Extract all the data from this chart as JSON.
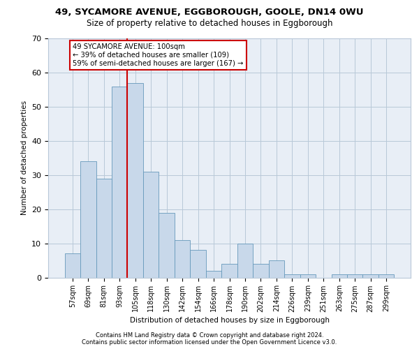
{
  "title_line1": "49, SYCAMORE AVENUE, EGGBOROUGH, GOOLE, DN14 0WU",
  "title_line2": "Size of property relative to detached houses in Eggborough",
  "xlabel": "Distribution of detached houses by size in Eggborough",
  "ylabel": "Number of detached properties",
  "bar_color": "#c8d8ea",
  "bar_edge_color": "#6699bb",
  "grid_color": "#b8c8d8",
  "background_color": "#e8eef6",
  "categories": [
    "57sqm",
    "69sqm",
    "81sqm",
    "93sqm",
    "105sqm",
    "118sqm",
    "130sqm",
    "142sqm",
    "154sqm",
    "166sqm",
    "178sqm",
    "190sqm",
    "202sqm",
    "214sqm",
    "226sqm",
    "239sqm",
    "251sqm",
    "263sqm",
    "275sqm",
    "287sqm",
    "299sqm"
  ],
  "values": [
    7,
    34,
    29,
    56,
    57,
    31,
    19,
    11,
    8,
    2,
    4,
    10,
    4,
    5,
    1,
    1,
    0,
    1,
    1,
    1,
    1
  ],
  "vline_color": "#cc0000",
  "vline_x": 3.5,
  "annotation_text": "49 SYCAMORE AVENUE: 100sqm\n← 39% of detached houses are smaller (109)\n59% of semi-detached houses are larger (167) →",
  "ylim": [
    0,
    70
  ],
  "yticks": [
    0,
    10,
    20,
    30,
    40,
    50,
    60,
    70
  ],
  "footer_line1": "Contains HM Land Registry data © Crown copyright and database right 2024.",
  "footer_line2": "Contains public sector information licensed under the Open Government Licence v3.0."
}
